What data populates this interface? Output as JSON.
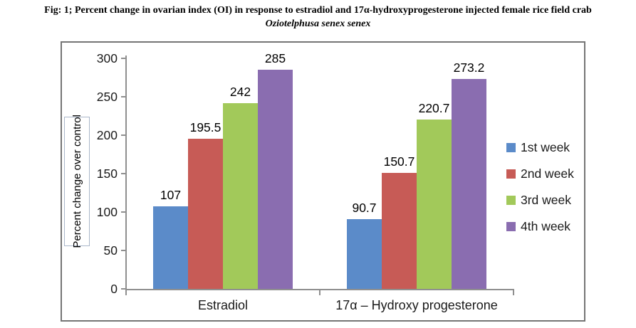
{
  "figure": {
    "caption_line1": "Fig: 1; Percent change in ovarian index (OI) in response to estradiol and 17α-hydroxyprogesterone injected female rice field crab",
    "caption_line2": "Oziotelphusa senex senex"
  },
  "chart_data": {
    "type": "bar",
    "title": "Fig: 1; Percent change in ovarian index (OI) in response to estradiol and 17α-hydroxyprogesterone injected female rice field crab Oziotelphusa senex senex",
    "categories": [
      "Estradiol",
      "17α – Hydroxy progesterone"
    ],
    "series": [
      {
        "name": "1st week",
        "color": "#5b8bc9",
        "values": [
          107,
          90.7
        ]
      },
      {
        "name": "2nd week",
        "color": "#c75b56",
        "values": [
          195.5,
          150.7
        ]
      },
      {
        "name": "3rd week",
        "color": "#a2c95a",
        "values": [
          242,
          220.7
        ]
      },
      {
        "name": "4th week",
        "color": "#8a6db0",
        "values": [
          285,
          273.2
        ]
      }
    ],
    "ylabel": "Percent change over control",
    "xlabel": "",
    "ylim": [
      0,
      300
    ],
    "yticks": [
      0,
      50,
      100,
      150,
      200,
      250,
      300
    ],
    "grid": false,
    "data_labels": true,
    "legend_position": "right",
    "axis_color": "#8f8f8f",
    "text_color": "#1a1a1a",
    "border_color": "#757575"
  }
}
